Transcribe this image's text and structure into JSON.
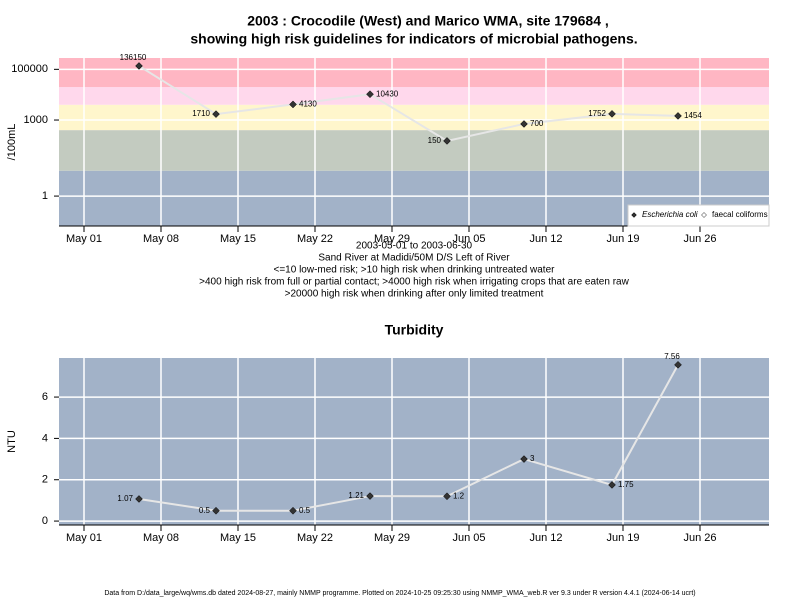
{
  "chart_data": [
    {
      "type": "line",
      "title": "2003 : Crocodile (West) and Marico WMA, site 179684 ,",
      "subtitle": "showing high risk guidelines for indicators of microbial pathogens.",
      "y_label": "/100mL",
      "log_y": true,
      "notes": [
        "2003-05-01 to 2003-06-30",
        "Sand River at Madidi/50M D/S Left of River",
        "<=10 low-med risk; >10 high risk when drinking untreated water",
        ">400 high risk from full or partial contact; >4000 high risk when irrigating crops that are eaten raw",
        ">20000 high risk when drinking after only limited treatment"
      ],
      "risk_thresholds": [
        10,
        400,
        4000,
        20000
      ],
      "band_colors": [
        "#a2b2c8",
        "#c3cbc0",
        "#fff6cc",
        "#ffd8ec",
        "#ffb6c3"
      ],
      "x": [
        "2003-05-06",
        "2003-05-13",
        "2003-05-20",
        "2003-05-27",
        "2003-06-03",
        "2003-06-10",
        "2003-06-18",
        "2003-06-24"
      ],
      "series": [
        {
          "name": "Escherichia coli",
          "color": "#333333",
          "values": [
            136150,
            1710,
            4130,
            10430,
            150,
            700,
            1752,
            1454
          ]
        },
        {
          "name": "faecal coliforms",
          "color": "#ffffff",
          "values": [
            null,
            null,
            null,
            null,
            null,
            null,
            null,
            null
          ]
        }
      ],
      "xlim": [
        "2003-04-29",
        "2003-07-02"
      ],
      "xticks": [
        {
          "value": "2003-05-01",
          "label": "May 01"
        },
        {
          "value": "2003-05-08",
          "label": "May 08"
        },
        {
          "value": "2003-05-15",
          "label": "May 15"
        },
        {
          "value": "2003-05-22",
          "label": "May 22"
        },
        {
          "value": "2003-05-29",
          "label": "May 29"
        },
        {
          "value": "2003-06-05",
          "label": "Jun 05"
        },
        {
          "value": "2003-06-12",
          "label": "Jun 12"
        },
        {
          "value": "2003-06-19",
          "label": "Jun 19"
        },
        {
          "value": "2003-06-26",
          "label": "Jun 26"
        }
      ],
      "ylim": [
        0.066,
        280000
      ],
      "yticks": [
        1,
        1000,
        100000
      ],
      "grid": true,
      "legend": "bottom-right"
    },
    {
      "type": "line",
      "title": "Turbidity",
      "y_label": "NTU",
      "log_y": false,
      "band_colors": [
        "#a2b2c8"
      ],
      "x": [
        "2003-05-06",
        "2003-05-13",
        "2003-05-20",
        "2003-05-27",
        "2003-06-03",
        "2003-06-10",
        "2003-06-18",
        "2003-06-24"
      ],
      "series": [
        {
          "color": "#333333",
          "values": [
            1.07,
            0.5,
            0.5,
            1.21,
            1.2,
            3,
            1.75,
            7.56
          ]
        }
      ],
      "xlim": [
        "2003-04-29",
        "2003-07-02"
      ],
      "xticks": [
        {
          "value": "2003-05-01",
          "label": "May 01"
        },
        {
          "value": "2003-05-08",
          "label": "May 08"
        },
        {
          "value": "2003-05-15",
          "label": "May 15"
        },
        {
          "value": "2003-05-22",
          "label": "May 22"
        },
        {
          "value": "2003-05-29",
          "label": "May 29"
        },
        {
          "value": "2003-06-05",
          "label": "Jun 05"
        },
        {
          "value": "2003-06-12",
          "label": "Jun 12"
        },
        {
          "value": "2003-06-19",
          "label": "Jun 19"
        },
        {
          "value": "2003-06-26",
          "label": "Jun 26"
        }
      ],
      "ylim": [
        -0.19,
        7.89
      ],
      "yticks": [
        0,
        2,
        4,
        6
      ],
      "grid": true
    }
  ],
  "footer": "Data from D:/data_large/wq/wms.db dated 2024-08-27, mainly NMMP programme. Plotted on 2024-10-25 09:25:30 using NMMP_WMA_web.R ver 9.3 under R version 4.4.1 (2024-06-14 ucrt)"
}
